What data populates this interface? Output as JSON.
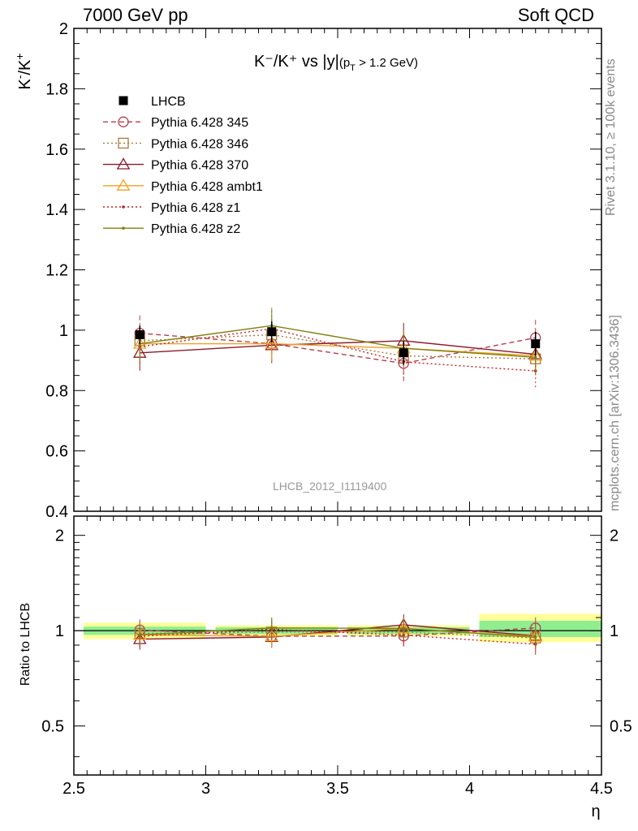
{
  "header": {
    "left": "7000 GeV pp",
    "right": "Soft QCD",
    "side_rivet": "Rivet 3.1.10, ≥ 100k events",
    "side_mcplots": "mcplots.cern.ch [arXiv:1306.3436]",
    "watermark": "LHCB_2012_I1119400"
  },
  "chart_data": [
    {
      "type": "line",
      "title": {
        "main": "K⁻/K⁺ vs |y|",
        "sub": "(p",
        "subT": "T",
        "subRest": " > 1.2 GeV)"
      },
      "ylabel": {
        "base": "K",
        "sup1": "-",
        "slash": "/K",
        "sup2": "+"
      },
      "xlim": [
        2.5,
        4.5
      ],
      "ylim": [
        0.4,
        2.0
      ],
      "yticks": [
        {
          "v": 0.4,
          "label": "0.4"
        },
        {
          "v": 0.6,
          "label": "0.6"
        },
        {
          "v": 0.8,
          "label": "0.8"
        },
        {
          "v": 1.0,
          "label": "1"
        },
        {
          "v": 1.2,
          "label": "1.2"
        },
        {
          "v": 1.4,
          "label": "1.4"
        },
        {
          "v": 1.6,
          "label": "1.6"
        },
        {
          "v": 1.8,
          "label": "1.8"
        },
        {
          "v": 2.0,
          "label": "2"
        }
      ],
      "x": [
        2.75,
        3.25,
        3.75,
        4.25
      ],
      "x_err": 0.25,
      "data": {
        "name": "LHCB",
        "values": [
          0.985,
          0.995,
          0.925,
          0.955
        ],
        "errors": [
          0.03,
          0.035,
          0.04,
          0.04
        ]
      },
      "series": [
        {
          "name": "Pythia 6.428 345",
          "color": "#b83c4e",
          "dash": "6,4",
          "marker": "circle",
          "values": [
            0.99,
            0.955,
            0.89,
            0.975
          ]
        },
        {
          "name": "Pythia 6.428 346",
          "color": "#a87a3c",
          "dash": "2,3",
          "marker": "square",
          "values": [
            0.965,
            0.985,
            0.915,
            0.905
          ]
        },
        {
          "name": "Pythia 6.428 370",
          "color": "#8b1a2a",
          "dash": "",
          "marker": "triangle",
          "values": [
            0.925,
            0.95,
            0.965,
            0.92
          ]
        },
        {
          "name": "Pythia 6.428 ambt1",
          "color": "#f0a020",
          "dash": "",
          "marker": "triangle",
          "values": [
            0.955,
            0.955,
            0.94,
            0.915
          ]
        },
        {
          "name": "Pythia 6.428 z1",
          "color": "#cc2222",
          "dash": "2,3",
          "marker": "dot",
          "values": [
            0.945,
            1.005,
            0.895,
            0.865
          ]
        },
        {
          "name": "Pythia 6.428 z2",
          "color": "#808010",
          "dash": "",
          "marker": "dot",
          "values": [
            0.955,
            1.015,
            0.94,
            0.91
          ]
        }
      ]
    },
    {
      "type": "line",
      "ylabel": "Ratio to LHCB",
      "xlabel": "η",
      "xlim": [
        2.5,
        4.5
      ],
      "ylim": [
        0.35,
        2.3
      ],
      "log_y": true,
      "xticks": [
        {
          "v": 2.5,
          "label": "2.5"
        },
        {
          "v": 3.0,
          "label": "3"
        },
        {
          "v": 3.5,
          "label": "3.5"
        },
        {
          "v": 4.0,
          "label": "4"
        },
        {
          "v": 4.5,
          "label": "4.5"
        }
      ],
      "yticks": [
        {
          "v": 0.5,
          "label": "0.5"
        },
        {
          "v": 1.0,
          "label": "1"
        },
        {
          "v": 2.0,
          "label": "2"
        }
      ],
      "bands": [
        {
          "x0": 2.5,
          "x1": 3.0,
          "inner": [
            0.97,
            1.03
          ],
          "outer": [
            0.94,
            1.06
          ]
        },
        {
          "x0": 3.0,
          "x1": 3.5,
          "inner": [
            0.975,
            1.025
          ],
          "outer": [
            0.96,
            1.04
          ]
        },
        {
          "x0": 3.5,
          "x1": 4.0,
          "inner": [
            0.975,
            1.025
          ],
          "outer": [
            0.96,
            1.04
          ]
        },
        {
          "x0": 4.0,
          "x1": 4.5,
          "inner": [
            0.955,
            1.075
          ],
          "outer": [
            0.92,
            1.13
          ]
        }
      ],
      "series": [
        {
          "name": "Pythia 6.428 345",
          "values": [
            1.005,
            0.96,
            0.962,
            1.02
          ]
        },
        {
          "name": "Pythia 6.428 346",
          "values": [
            0.98,
            0.99,
            0.99,
            0.948
          ]
        },
        {
          "name": "Pythia 6.428 370",
          "values": [
            0.94,
            0.955,
            1.043,
            0.963
          ]
        },
        {
          "name": "Pythia 6.428 ambt1",
          "values": [
            0.97,
            0.96,
            1.016,
            0.958
          ]
        },
        {
          "name": "Pythia 6.428 z1",
          "values": [
            0.96,
            1.01,
            0.968,
            0.906
          ]
        },
        {
          "name": "Pythia 6.428 z2",
          "values": [
            0.97,
            1.02,
            1.016,
            0.953
          ]
        }
      ]
    }
  ]
}
